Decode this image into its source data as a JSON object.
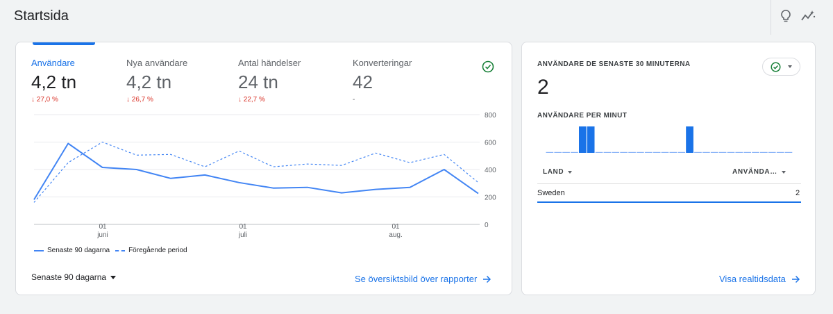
{
  "page": {
    "title": "Startsida"
  },
  "header_icons": [
    "lightbulb-icon",
    "insights-icon"
  ],
  "metrics": [
    {
      "label": "Användare",
      "value": "4,2 tn",
      "change": "↓ 27,0 %"
    },
    {
      "label": "Nya användare",
      "value": "4,2 tn",
      "change": "↓ 26,7 %"
    },
    {
      "label": "Antal händelser",
      "value": "24 tn",
      "change": "↓ 22,7 %"
    },
    {
      "label": "Konverteringar",
      "value": "42",
      "change": "-"
    }
  ],
  "colors": {
    "accent": "#1a73e8",
    "line": "#4285f4",
    "negative": "#d93025",
    "check": "#188038"
  },
  "chart_data": {
    "type": "line",
    "x_ticks": [
      {
        "day": "01",
        "month": "juni"
      },
      {
        "day": "01",
        "month": "juli"
      },
      {
        "day": "01",
        "month": "aug."
      }
    ],
    "y_ticks": [
      "800",
      "600",
      "400",
      "200",
      "0"
    ],
    "ylim": [
      0,
      800
    ],
    "grid": true,
    "legend_position": "bottom-left",
    "series": [
      {
        "name": "Senaste 90 dagarna",
        "style": "solid",
        "values": [
          180,
          590,
          415,
          400,
          335,
          360,
          305,
          265,
          270,
          230,
          255,
          270,
          400,
          225
        ]
      },
      {
        "name": "Föregående period",
        "style": "dashed",
        "values": [
          160,
          450,
          600,
          505,
          510,
          420,
          535,
          420,
          440,
          430,
          520,
          450,
          510,
          305
        ]
      }
    ]
  },
  "footer": {
    "date_range": "Senaste 90 dagarna",
    "report_link": "Se översiktsbild över rapporter"
  },
  "realtime": {
    "title": "ANVÄNDARE DE SENASTE 30 MINUTERNA",
    "value": "2",
    "per_minute_label": "ANVÄNDARE PER MINUT",
    "per_minute": [
      0,
      0,
      0,
      0,
      1,
      1,
      0,
      0,
      0,
      0,
      0,
      0,
      0,
      0,
      0,
      0,
      0,
      1,
      0,
      0,
      0,
      0,
      0,
      0,
      0,
      0,
      0,
      0,
      0,
      0
    ],
    "table": {
      "col_country": "LAND",
      "col_users": "ANVÄNDA…",
      "rows": [
        {
          "country": "Sweden",
          "users": "2"
        }
      ]
    },
    "link": "Visa realtidsdata"
  }
}
